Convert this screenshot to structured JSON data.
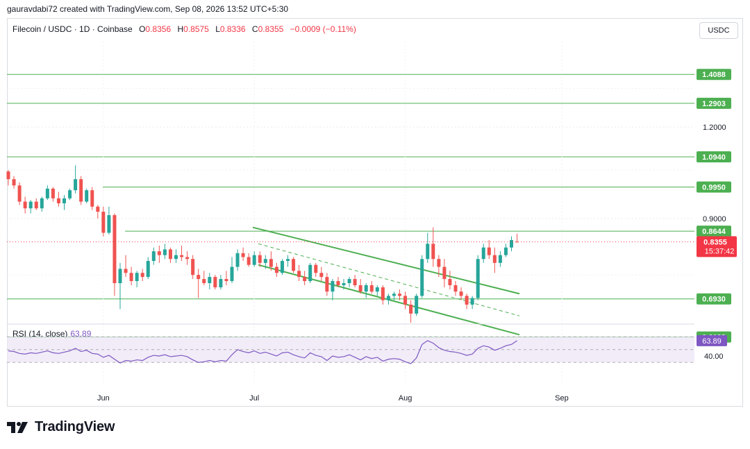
{
  "credit": "gauravdabi72 created with TradingView.com, Sep 08, 2026 13:52 UTC+5:30",
  "header": {
    "symbol": "Filecoin / USDC · 1D · Coinbase",
    "o_label": "O",
    "o": "0.8356",
    "h_label": "H",
    "h": "0.8575",
    "l_label": "L",
    "l": "0.8336",
    "c_label": "C",
    "c": "0.8355",
    "change": "−0.0009 (−0.11%)"
  },
  "currency_button": "USDC",
  "logo_text": "TradingView",
  "colors": {
    "up": "#26a69a",
    "down": "#ef5350",
    "level": "#4caf50",
    "rsi": "#7e57c2",
    "price_badge": "#f23645"
  },
  "chart_data": {
    "type": "candlestick",
    "y_axis_ticks": [
      "1.2000",
      "0.9000"
    ],
    "x_axis_ticks": [
      "Jun",
      "Jul",
      "Aug",
      "Sep"
    ],
    "horizontal_levels": [
      "1.4088",
      "1.2903",
      "1.0940",
      "0.9950",
      "0.8644",
      "0.6930",
      "0.6103"
    ],
    "current_price": "0.8355",
    "countdown": "15:37:42",
    "rsi": {
      "label": "RSI (14, close)",
      "value": "63.89",
      "tick": "40.00"
    },
    "candles": [
      [
        1.045,
        1.05,
        1.0,
        1.02
      ],
      [
        1.02,
        1.03,
        0.99,
        1.0
      ],
      [
        1.0,
        1.01,
        0.94,
        0.95
      ],
      [
        0.95,
        0.965,
        0.915,
        0.93
      ],
      [
        0.93,
        0.955,
        0.915,
        0.95
      ],
      [
        0.95,
        0.96,
        0.925,
        0.93
      ],
      [
        0.93,
        0.965,
        0.92,
        0.96
      ],
      [
        0.96,
        1.0,
        0.955,
        0.99
      ],
      [
        0.99,
        0.995,
        0.95,
        0.96
      ],
      [
        0.96,
        0.98,
        0.935,
        0.945
      ],
      [
        0.945,
        0.97,
        0.925,
        0.96
      ],
      [
        0.96,
        0.99,
        0.955,
        0.985
      ],
      [
        0.985,
        1.065,
        0.975,
        1.02
      ],
      [
        1.02,
        1.03,
        0.94,
        0.95
      ],
      [
        0.95,
        0.99,
        0.945,
        0.985
      ],
      [
        0.985,
        0.995,
        0.925,
        0.935
      ],
      [
        0.935,
        0.94,
        0.9,
        0.92
      ],
      [
        0.92,
        0.935,
        0.85,
        0.86
      ],
      [
        0.86,
        0.935,
        0.855,
        0.91
      ],
      [
        0.91,
        0.915,
        0.7,
        0.73
      ],
      [
        0.73,
        0.78,
        0.67,
        0.765
      ],
      [
        0.765,
        0.8,
        0.745,
        0.755
      ],
      [
        0.755,
        0.77,
        0.725,
        0.735
      ],
      [
        0.735,
        0.76,
        0.72,
        0.755
      ],
      [
        0.755,
        0.765,
        0.735,
        0.745
      ],
      [
        0.745,
        0.795,
        0.74,
        0.785
      ],
      [
        0.785,
        0.82,
        0.775,
        0.81
      ],
      [
        0.81,
        0.825,
        0.78,
        0.8
      ],
      [
        0.8,
        0.83,
        0.79,
        0.815
      ],
      [
        0.815,
        0.82,
        0.78,
        0.79
      ],
      [
        0.79,
        0.815,
        0.78,
        0.8
      ],
      [
        0.8,
        0.825,
        0.785,
        0.795
      ],
      [
        0.795,
        0.81,
        0.775,
        0.79
      ],
      [
        0.79,
        0.8,
        0.74,
        0.75
      ],
      [
        0.75,
        0.765,
        0.695,
        0.74
      ],
      [
        0.74,
        0.76,
        0.725,
        0.73
      ],
      [
        0.73,
        0.755,
        0.715,
        0.745
      ],
      [
        0.745,
        0.75,
        0.715,
        0.72
      ],
      [
        0.72,
        0.75,
        0.715,
        0.74
      ],
      [
        0.74,
        0.76,
        0.725,
        0.735
      ],
      [
        0.735,
        0.795,
        0.73,
        0.77
      ],
      [
        0.77,
        0.815,
        0.76,
        0.805
      ],
      [
        0.805,
        0.82,
        0.785,
        0.795
      ],
      [
        0.795,
        0.805,
        0.77,
        0.775
      ],
      [
        0.775,
        0.81,
        0.77,
        0.8
      ],
      [
        0.8,
        0.81,
        0.77,
        0.78
      ],
      [
        0.78,
        0.8,
        0.765,
        0.79
      ],
      [
        0.79,
        0.81,
        0.76,
        0.77
      ],
      [
        0.77,
        0.78,
        0.745,
        0.755
      ],
      [
        0.755,
        0.79,
        0.75,
        0.785
      ],
      [
        0.785,
        0.8,
        0.77,
        0.79
      ],
      [
        0.79,
        0.795,
        0.755,
        0.76
      ],
      [
        0.76,
        0.775,
        0.735,
        0.745
      ],
      [
        0.745,
        0.76,
        0.725,
        0.735
      ],
      [
        0.735,
        0.78,
        0.73,
        0.775
      ],
      [
        0.775,
        0.78,
        0.745,
        0.755
      ],
      [
        0.755,
        0.77,
        0.735,
        0.745
      ],
      [
        0.745,
        0.755,
        0.7,
        0.71
      ],
      [
        0.71,
        0.74,
        0.69,
        0.735
      ],
      [
        0.735,
        0.745,
        0.72,
        0.725
      ],
      [
        0.725,
        0.74,
        0.715,
        0.73
      ],
      [
        0.73,
        0.745,
        0.72,
        0.74
      ],
      [
        0.74,
        0.75,
        0.72,
        0.725
      ],
      [
        0.725,
        0.74,
        0.705,
        0.71
      ],
      [
        0.71,
        0.73,
        0.695,
        0.725
      ],
      [
        0.725,
        0.735,
        0.705,
        0.71
      ],
      [
        0.71,
        0.725,
        0.7,
        0.72
      ],
      [
        0.72,
        0.725,
        0.68,
        0.69
      ],
      [
        0.69,
        0.705,
        0.68,
        0.7
      ],
      [
        0.7,
        0.71,
        0.69,
        0.705
      ],
      [
        0.705,
        0.715,
        0.69,
        0.7
      ],
      [
        0.7,
        0.71,
        0.67,
        0.68
      ],
      [
        0.68,
        0.69,
        0.64,
        0.66
      ],
      [
        0.66,
        0.705,
        0.655,
        0.7
      ],
      [
        0.7,
        0.8,
        0.695,
        0.79
      ],
      [
        0.79,
        0.86,
        0.78,
        0.83
      ],
      [
        0.83,
        0.875,
        0.77,
        0.79
      ],
      [
        0.79,
        0.8,
        0.745,
        0.77
      ],
      [
        0.77,
        0.79,
        0.72,
        0.74
      ],
      [
        0.74,
        0.76,
        0.715,
        0.725
      ],
      [
        0.725,
        0.735,
        0.7,
        0.71
      ],
      [
        0.71,
        0.72,
        0.69,
        0.7
      ],
      [
        0.7,
        0.705,
        0.67,
        0.68
      ],
      [
        0.68,
        0.7,
        0.67,
        0.695
      ],
      [
        0.695,
        0.8,
        0.69,
        0.79
      ],
      [
        0.79,
        0.83,
        0.78,
        0.82
      ],
      [
        0.82,
        0.84,
        0.79,
        0.8
      ],
      [
        0.8,
        0.82,
        0.755,
        0.78
      ],
      [
        0.78,
        0.81,
        0.77,
        0.8
      ],
      [
        0.8,
        0.83,
        0.795,
        0.82
      ],
      [
        0.82,
        0.85,
        0.81,
        0.84
      ],
      [
        0.8356,
        0.8575,
        0.8336,
        0.8355
      ]
    ],
    "rsi_values": [
      48,
      47,
      44,
      43,
      45,
      44,
      46,
      48,
      45,
      44,
      46,
      48,
      52,
      47,
      49,
      44,
      43,
      38,
      41,
      35,
      29,
      33,
      32,
      34,
      33,
      38,
      41,
      40,
      42,
      39,
      40,
      41,
      39,
      34,
      30,
      31,
      33,
      31,
      33,
      32,
      42,
      50,
      47,
      45,
      48,
      44,
      46,
      43,
      40,
      45,
      46,
      42,
      39,
      37,
      45,
      41,
      39,
      33,
      40,
      38,
      39,
      42,
      38,
      34,
      39,
      36,
      38,
      32,
      35,
      36,
      35,
      31,
      28,
      37,
      58,
      64,
      60,
      53,
      49,
      47,
      46,
      44,
      41,
      43,
      52,
      56,
      54,
      49,
      52,
      56,
      58,
      63.89
    ]
  }
}
